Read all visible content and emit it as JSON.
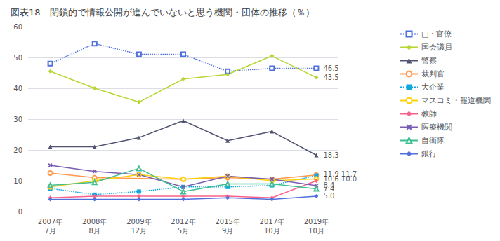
{
  "chart_data": {
    "type": "line",
    "title": "図表18　閉鎖的で情報公開が進んでいないと思う機関・団体の推移（％）",
    "categories": [
      "2007年\n7月",
      "2008年\n8月",
      "2009年\n12月",
      "2012年\n5月",
      "2015年\n9月",
      "2017年\n10月",
      "2019年\n10月"
    ],
    "ylim": [
      0,
      60
    ],
    "yticks": [
      0,
      10,
      20,
      30,
      40,
      50,
      60
    ],
    "grid": true,
    "legend": "right",
    "series": [
      {
        "name": "□・官僚",
        "values": [
          48.0,
          54.5,
          51.0,
          51.0,
          45.5,
          46.5,
          46.5
        ],
        "marker": "square_open",
        "line_style": "dotted"
      },
      {
        "name": "国会議員",
        "values": [
          45.5,
          40.0,
          35.5,
          43.0,
          44.5,
          50.5,
          43.5
        ],
        "marker": "diamond",
        "line_style": "solid"
      },
      {
        "name": "警察",
        "values": [
          21.0,
          21.0,
          24.0,
          29.5,
          23.0,
          26.0,
          18.3
        ],
        "marker": "triangle",
        "line_style": "solid"
      },
      {
        "name": "裁判官",
        "values": [
          12.5,
          11.0,
          null,
          10.5,
          11.0,
          10.5,
          11.9
        ],
        "marker": "circle_open",
        "line_style": "solid"
      },
      {
        "name": "大企業",
        "values": [
          7.5,
          5.5,
          6.5,
          8.0,
          8.0,
          8.5,
          11.7
        ],
        "marker": "square",
        "line_style": "dotted"
      },
      {
        "name": "マスコミ・報道機関",
        "values": [
          8.0,
          10.0,
          12.0,
          10.5,
          11.5,
          10.0,
          10.6
        ],
        "marker": "circle_open",
        "line_style": "solid"
      },
      {
        "name": "教師",
        "values": [
          4.5,
          5.0,
          5.0,
          5.0,
          5.0,
          4.5,
          10.0
        ],
        "marker": "diamond",
        "line_style": "solid"
      },
      {
        "name": "医療機関",
        "values": [
          15.0,
          13.0,
          12.0,
          8.0,
          11.5,
          10.5,
          8.4
        ],
        "marker": "x",
        "line_style": "solid"
      },
      {
        "name": "自衛隊",
        "values": [
          8.5,
          9.5,
          14.0,
          6.5,
          9.0,
          9.0,
          7.4
        ],
        "marker": "triangle_open",
        "line_style": "solid"
      },
      {
        "name": "銀行",
        "values": [
          4.0,
          4.0,
          4.0,
          4.0,
          4.5,
          4.0,
          5.0
        ],
        "marker": "diamond",
        "line_style": "solid"
      }
    ],
    "annotations": [
      {
        "text": "46.5",
        "y": 46.5
      },
      {
        "text": "43.5",
        "y": 43.5
      },
      {
        "text": "18.3",
        "y": 18.3
      },
      {
        "text": "11.9 11.7",
        "y": 12.2
      },
      {
        "text": "10.6 10.0",
        "y": 10.6
      },
      {
        "text": "8.4",
        "y": 8.6
      },
      {
        "text": "7.4",
        "y": 7.4
      },
      {
        "text": "5.0",
        "y": 5.2
      }
    ]
  }
}
